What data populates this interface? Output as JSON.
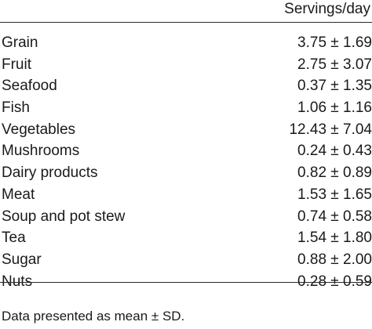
{
  "table": {
    "column_header": "Servings/day",
    "rows": [
      {
        "name": "Grain",
        "value": "3.75 ± 1.69"
      },
      {
        "name": "Fruit",
        "value": "2.75 ± 3.07"
      },
      {
        "name": "Seafood",
        "value": "0.37 ± 1.35"
      },
      {
        "name": "Fish",
        "value": "1.06 ± 1.16"
      },
      {
        "name": "Vegetables",
        "value": "12.43 ± 7.04"
      },
      {
        "name": "Mushrooms",
        "value": "0.24 ± 0.43"
      },
      {
        "name": "Dairy products",
        "value": "0.82 ± 0.89"
      },
      {
        "name": "Meat",
        "value": "1.53 ± 1.65"
      },
      {
        "name": "Soup and pot stew",
        "value": "0.74 ± 0.58"
      },
      {
        "name": "Tea",
        "value": "1.54 ± 1.80"
      },
      {
        "name": "Sugar",
        "value": "0.88 ± 2.00"
      },
      {
        "name": "Nuts",
        "value": "0.28 ± 0.59"
      }
    ],
    "footnote": "Data presented as mean ± SD."
  }
}
